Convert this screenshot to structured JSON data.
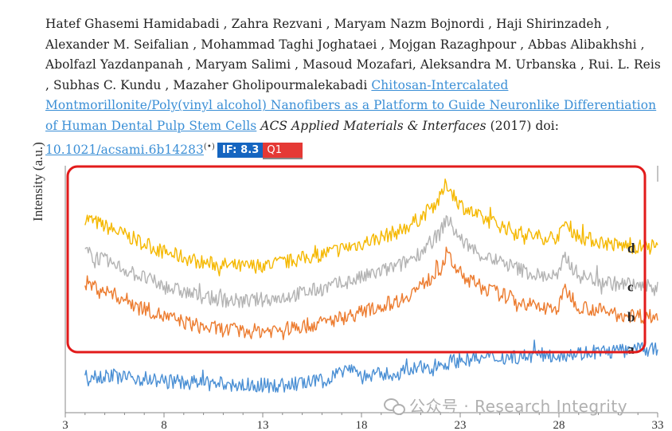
{
  "citation": {
    "authors": "Hatef Ghasemi Hamidabadi , Zahra Rezvani , Maryam Nazm Bojnordi , Haji Shirinzadeh , Alexander M. Seifalian , Mohammad Taghi Joghataei , Mojgan Razaghpour , Abbas Alibakhshi , Abolfazl Yazdanpanah , Maryam Salimi , Masoud Mozafari, Aleksandra M. Urbanska , Rui. L. Reis , Subhas C. Kundu , Mazaher Gholipourmalekabadi",
    "title_link": "Chitosan-Intercalated Montmorillonite/Poly(vinyl alcohol) Nanofibers as a Platform to Guide Neuronlike Differentiation of Human Dental Pulp Stem Cells",
    "journal": "ACS Applied Materials & Interfaces",
    "year": "(2017) doi:",
    "doi_link": "10.1021/acsami.6b14283",
    "altmetric_icon": "(•)",
    "impact_factor": "IF: 8.3",
    "quartile": "Q1"
  },
  "colors": {
    "link": "#3b8fd6",
    "if_badge": "#1565c0",
    "q_badge": "#e53935",
    "highlight_box": "#e21b1b"
  },
  "chart_data": {
    "type": "line",
    "title": "",
    "xlabel": "",
    "ylabel": "Intensity (a.u.)",
    "xlim": [
      3,
      33
    ],
    "xticks": [
      "3",
      "8",
      "13",
      "18",
      "23",
      "28",
      "33"
    ],
    "series": [
      {
        "name": "d",
        "color": "#f5b800",
        "x": [
          4,
          6,
          8,
          10,
          12,
          14,
          16,
          18,
          20,
          21,
          22,
          22.3,
          23,
          24,
          26,
          27,
          28,
          28.3,
          29,
          31,
          33
        ],
        "values": [
          0.84,
          0.76,
          0.68,
          0.63,
          0.61,
          0.63,
          0.67,
          0.72,
          0.78,
          0.84,
          0.93,
          1.0,
          0.9,
          0.84,
          0.77,
          0.75,
          0.75,
          0.82,
          0.75,
          0.71,
          0.7
        ]
      },
      {
        "name": "c",
        "color": "#b3b3b3",
        "x": [
          4,
          6,
          8,
          10,
          12,
          14,
          16,
          18,
          20,
          21,
          22,
          22.3,
          23,
          24,
          26,
          27,
          28,
          28.3,
          29,
          31,
          33
        ],
        "values": [
          0.68,
          0.6,
          0.52,
          0.47,
          0.45,
          0.47,
          0.51,
          0.56,
          0.62,
          0.68,
          0.77,
          0.84,
          0.74,
          0.67,
          0.6,
          0.57,
          0.57,
          0.66,
          0.57,
          0.53,
          0.52
        ]
      },
      {
        "name": "b",
        "color": "#ec7c30",
        "x": [
          4,
          6,
          8,
          10,
          12,
          14,
          16,
          18,
          20,
          21,
          22,
          22.3,
          23,
          24,
          26,
          27,
          28,
          28.3,
          29,
          31,
          33
        ],
        "values": [
          0.54,
          0.46,
          0.38,
          0.33,
          0.31,
          0.32,
          0.35,
          0.4,
          0.46,
          0.52,
          0.6,
          0.67,
          0.58,
          0.52,
          0.45,
          0.42,
          0.42,
          0.51,
          0.43,
          0.39,
          0.38
        ]
      },
      {
        "name": "a",
        "color": "#4a8fd4",
        "x": [
          4,
          6,
          8,
          10,
          12,
          14,
          16,
          17.5,
          18,
          20,
          22,
          23,
          25,
          27,
          29,
          31,
          33
        ],
        "values": [
          0.11,
          0.1,
          0.08,
          0.07,
          0.06,
          0.06,
          0.08,
          0.15,
          0.1,
          0.12,
          0.16,
          0.18,
          0.19,
          0.2,
          0.21,
          0.22,
          0.23
        ]
      }
    ],
    "grid": false,
    "legend": "right-end labels"
  },
  "watermark": {
    "text": "公众号 · Research Integrity"
  }
}
